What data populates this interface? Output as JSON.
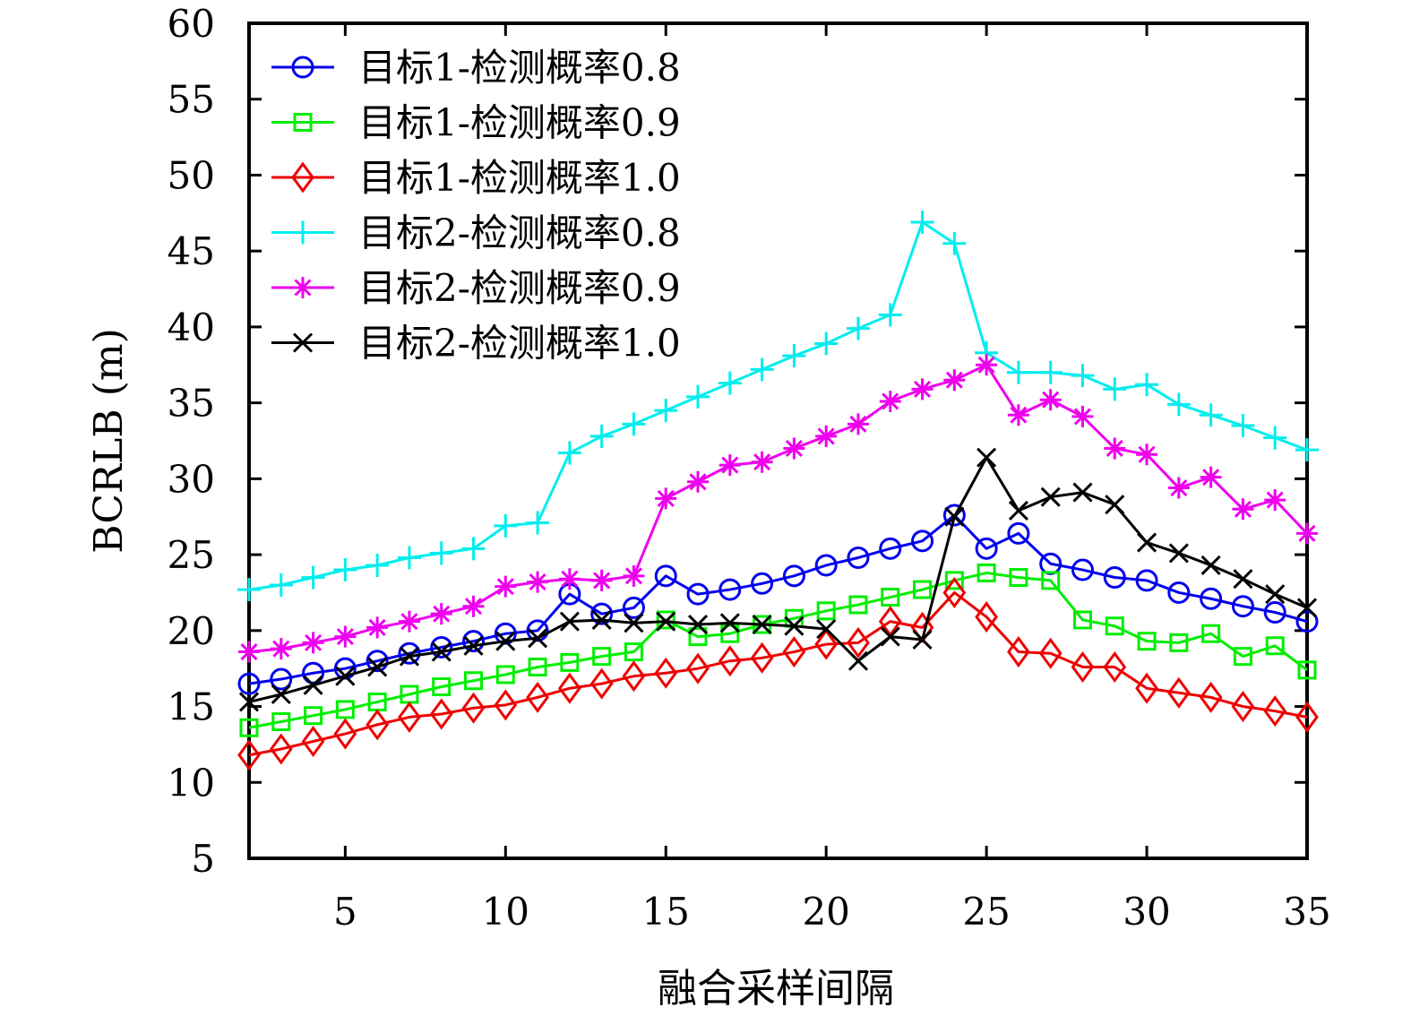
{
  "chart_data": {
    "type": "line",
    "title": "",
    "xlabel": "融合采样间隔",
    "ylabel": "BCRLB (m)",
    "xlim": [
      2,
      35
    ],
    "ylim": [
      5,
      60
    ],
    "xticks": [
      5,
      10,
      15,
      20,
      25,
      30,
      35
    ],
    "yticks": [
      5,
      10,
      15,
      20,
      25,
      30,
      35,
      40,
      45,
      50,
      55,
      60
    ],
    "grid": false,
    "legend_position": "top-left",
    "x": [
      2,
      3,
      4,
      5,
      6,
      7,
      8,
      9,
      10,
      11,
      12,
      13,
      14,
      15,
      16,
      17,
      18,
      19,
      20,
      21,
      22,
      23,
      24,
      25,
      26,
      27,
      28,
      29,
      30,
      31,
      32,
      33,
      34,
      35
    ],
    "series": [
      {
        "name": "目标1-检测概率0.8",
        "color": "#0000ee",
        "marker": "circle",
        "values": [
          16.5,
          16.8,
          17.2,
          17.5,
          18.0,
          18.5,
          18.9,
          19.3,
          19.8,
          20.0,
          22.4,
          21.1,
          21.5,
          23.6,
          22.4,
          22.7,
          23.1,
          23.6,
          24.3,
          24.8,
          25.4,
          25.9,
          27.6,
          25.4,
          26.4,
          24.4,
          24.0,
          23.5,
          23.3,
          22.5,
          22.1,
          21.6,
          21.2,
          20.6
        ]
      },
      {
        "name": "目标1-检测概率0.9",
        "color": "#00ee00",
        "marker": "square",
        "values": [
          13.6,
          14.0,
          14.4,
          14.8,
          15.3,
          15.8,
          16.3,
          16.7,
          17.1,
          17.6,
          17.9,
          18.3,
          18.6,
          20.7,
          19.6,
          19.8,
          20.4,
          20.8,
          21.3,
          21.7,
          22.2,
          22.7,
          23.3,
          23.8,
          23.5,
          23.3,
          20.7,
          20.3,
          19.3,
          19.2,
          19.8,
          18.3,
          19.0,
          17.4
        ]
      },
      {
        "name": "目标1-检测概率1.0",
        "color": "#ee0000",
        "marker": "diamond",
        "values": [
          11.8,
          12.2,
          12.7,
          13.2,
          13.8,
          14.3,
          14.5,
          14.9,
          15.1,
          15.6,
          16.2,
          16.5,
          17.0,
          17.2,
          17.5,
          18.0,
          18.2,
          18.6,
          19.1,
          19.2,
          20.6,
          20.2,
          22.5,
          20.9,
          18.6,
          18.5,
          17.6,
          17.6,
          16.2,
          15.9,
          15.6,
          15.0,
          14.7,
          14.3
        ]
      },
      {
        "name": "目标2-检测概率0.8",
        "color": "#00eeee",
        "marker": "plus",
        "values": [
          22.7,
          23.0,
          23.5,
          24.0,
          24.3,
          24.8,
          25.1,
          25.4,
          26.9,
          27.1,
          31.7,
          32.8,
          33.6,
          34.5,
          35.4,
          36.3,
          37.2,
          38.1,
          38.9,
          39.9,
          40.8,
          46.9,
          45.5,
          38.3,
          37.0,
          37.0,
          36.8,
          35.9,
          36.2,
          34.9,
          34.2,
          33.5,
          32.7,
          31.9
        ]
      },
      {
        "name": "目标2-检测概率0.9",
        "color": "#ee00ee",
        "marker": "asterisk",
        "values": [
          18.6,
          18.8,
          19.2,
          19.6,
          20.2,
          20.6,
          21.1,
          21.6,
          22.9,
          23.2,
          23.4,
          23.3,
          23.6,
          28.7,
          29.8,
          30.9,
          31.1,
          32.0,
          32.8,
          33.6,
          35.1,
          35.9,
          36.5,
          37.5,
          34.2,
          35.2,
          34.1,
          32.0,
          31.6,
          29.4,
          30.1,
          28.0,
          28.6,
          26.4
        ]
      },
      {
        "name": "目标2-检测概率1.0",
        "color": "#000000",
        "marker": "x",
        "values": [
          15.3,
          15.8,
          16.4,
          17.0,
          17.6,
          18.3,
          18.6,
          19.0,
          19.3,
          19.5,
          20.6,
          20.7,
          20.5,
          20.6,
          20.4,
          20.5,
          20.4,
          20.3,
          20.1,
          18.0,
          19.6,
          19.4,
          27.5,
          31.4,
          27.9,
          28.8,
          29.1,
          28.3,
          25.8,
          25.1,
          24.3,
          23.4,
          22.4,
          21.5
        ]
      }
    ]
  }
}
